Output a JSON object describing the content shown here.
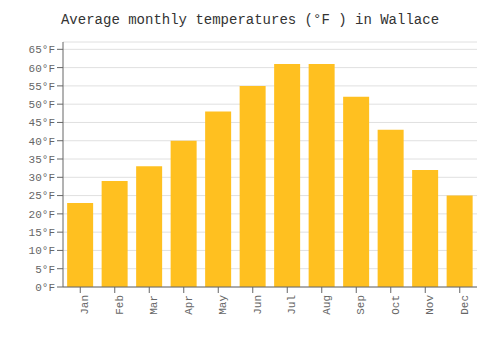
{
  "chart_data": {
    "type": "bar",
    "title": "Average monthly temperatures (°F ) in Wallace",
    "categories": [
      "Jan",
      "Feb",
      "Mar",
      "Apr",
      "May",
      "Jun",
      "Jul",
      "Aug",
      "Sep",
      "Oct",
      "Nov",
      "Dec"
    ],
    "values": [
      23,
      29,
      33,
      40,
      48,
      55,
      61,
      61,
      52,
      43,
      32,
      25
    ],
    "color": "#FFC020",
    "ylim": [
      0,
      67
    ],
    "yticks": [
      {
        "value": 0,
        "label": "0°F"
      },
      {
        "value": 5,
        "label": "5°F"
      },
      {
        "value": 10,
        "label": "10°F"
      },
      {
        "value": 15,
        "label": "15°F"
      },
      {
        "value": 20,
        "label": "20°F"
      },
      {
        "value": 25,
        "label": "25°F"
      },
      {
        "value": 30,
        "label": "30°F"
      },
      {
        "value": 35,
        "label": "35°F"
      },
      {
        "value": 40,
        "label": "40°F"
      },
      {
        "value": 45,
        "label": "45°F"
      },
      {
        "value": 50,
        "label": "50°F"
      },
      {
        "value": 55,
        "label": "55°F"
      },
      {
        "value": 60,
        "label": "60°F"
      },
      {
        "value": 65,
        "label": "65°F"
      }
    ],
    "grid": true
  }
}
